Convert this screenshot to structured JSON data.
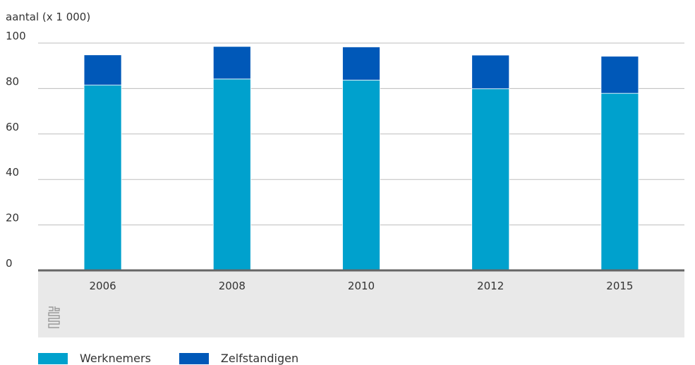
{
  "chart_data": {
    "type": "bar",
    "stacked": true,
    "categories": [
      "2006",
      "2008",
      "2010",
      "2012",
      "2015"
    ],
    "series": [
      {
        "name": "Werknemers",
        "color": "#00a1cd",
        "values": [
          81.5,
          84.2,
          83.7,
          79.9,
          77.9
        ]
      },
      {
        "name": "Zelfstandigen",
        "color": "#0058b8",
        "values": [
          13.3,
          14.3,
          14.6,
          14.8,
          16.3
        ]
      }
    ],
    "ylabel": "aantal (x 1 000)",
    "ylim": [
      0,
      100
    ],
    "yticks": [
      "0",
      "20",
      "40",
      "60",
      "80",
      "100"
    ],
    "grid": true,
    "legend_position": "bottom-left"
  },
  "brand": {
    "logo": "cbs-logo-icon"
  }
}
